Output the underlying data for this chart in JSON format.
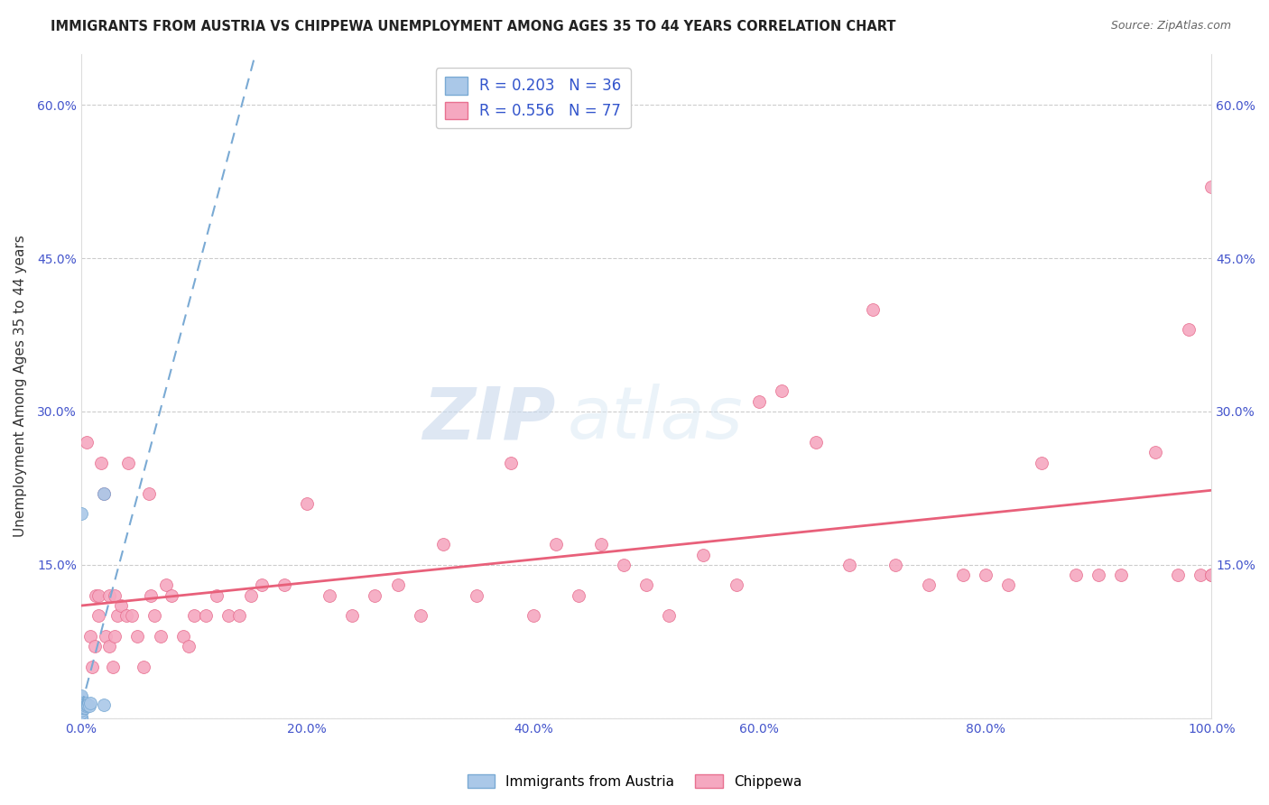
{
  "title": "IMMIGRANTS FROM AUSTRIA VS CHIPPEWA UNEMPLOYMENT AMONG AGES 35 TO 44 YEARS CORRELATION CHART",
  "source": "Source: ZipAtlas.com",
  "ylabel": "Unemployment Among Ages 35 to 44 years",
  "xlim": [
    0,
    1.0
  ],
  "ylim": [
    0,
    0.65
  ],
  "xticks": [
    0.0,
    0.2,
    0.4,
    0.6,
    0.8,
    1.0
  ],
  "xticklabels": [
    "0.0%",
    "20.0%",
    "40.0%",
    "60.0%",
    "80.0%",
    "100.0%"
  ],
  "ytick_positions": [
    0.0,
    0.15,
    0.3,
    0.45,
    0.6
  ],
  "ytick_labels": [
    "",
    "15.0%",
    "30.0%",
    "45.0%",
    "60.0%"
  ],
  "grid_color": "#cccccc",
  "background_color": "#ffffff",
  "austria_color": "#aac8e8",
  "austria_edge": "#7aaad4",
  "chippewa_color": "#f5a8c0",
  "chippewa_edge": "#e87090",
  "austria_trend_color": "#7aaad4",
  "chippewa_trend_color": "#e8607a",
  "R_austria": 0.203,
  "N_austria": 36,
  "R_chippewa": 0.556,
  "N_chippewa": 77,
  "legend_label_austria": "Immigrants from Austria",
  "legend_label_chippewa": "Chippewa",
  "watermark_zip": "ZIP",
  "watermark_atlas": "atlas",
  "austria_x": [
    0.0,
    0.0,
    0.0,
    0.0,
    0.0,
    0.0,
    0.0,
    0.0,
    0.0,
    0.0,
    0.0,
    0.0,
    0.0,
    0.0,
    0.0,
    0.0,
    0.0,
    0.0,
    0.001,
    0.001,
    0.001,
    0.001,
    0.001,
    0.002,
    0.002,
    0.002,
    0.003,
    0.003,
    0.004,
    0.004,
    0.005,
    0.006,
    0.007,
    0.008,
    0.02,
    0.02
  ],
  "austria_y": [
    0.0,
    0.0,
    0.0,
    0.0,
    0.0,
    0.0,
    0.005,
    0.008,
    0.01,
    0.01,
    0.012,
    0.012,
    0.013,
    0.015,
    0.015,
    0.02,
    0.022,
    0.2,
    0.01,
    0.01,
    0.012,
    0.013,
    0.015,
    0.01,
    0.012,
    0.013,
    0.01,
    0.013,
    0.012,
    0.015,
    0.013,
    0.013,
    0.012,
    0.015,
    0.013,
    0.22
  ],
  "chippewa_x": [
    0.005,
    0.008,
    0.01,
    0.012,
    0.013,
    0.015,
    0.015,
    0.018,
    0.02,
    0.022,
    0.025,
    0.025,
    0.028,
    0.03,
    0.03,
    0.032,
    0.035,
    0.04,
    0.042,
    0.045,
    0.05,
    0.055,
    0.06,
    0.062,
    0.065,
    0.07,
    0.075,
    0.08,
    0.09,
    0.095,
    0.1,
    0.11,
    0.12,
    0.13,
    0.14,
    0.15,
    0.16,
    0.18,
    0.2,
    0.22,
    0.24,
    0.26,
    0.28,
    0.3,
    0.32,
    0.35,
    0.38,
    0.4,
    0.42,
    0.44,
    0.46,
    0.48,
    0.5,
    0.52,
    0.55,
    0.58,
    0.6,
    0.62,
    0.65,
    0.68,
    0.7,
    0.72,
    0.75,
    0.78,
    0.8,
    0.82,
    0.85,
    0.88,
    0.9,
    0.92,
    0.95,
    0.97,
    0.98,
    0.99,
    1.0,
    1.0,
    1.0
  ],
  "chippewa_y": [
    0.27,
    0.08,
    0.05,
    0.07,
    0.12,
    0.12,
    0.1,
    0.25,
    0.22,
    0.08,
    0.07,
    0.12,
    0.05,
    0.08,
    0.12,
    0.1,
    0.11,
    0.1,
    0.25,
    0.1,
    0.08,
    0.05,
    0.22,
    0.12,
    0.1,
    0.08,
    0.13,
    0.12,
    0.08,
    0.07,
    0.1,
    0.1,
    0.12,
    0.1,
    0.1,
    0.12,
    0.13,
    0.13,
    0.21,
    0.12,
    0.1,
    0.12,
    0.13,
    0.1,
    0.17,
    0.12,
    0.25,
    0.1,
    0.17,
    0.12,
    0.17,
    0.15,
    0.13,
    0.1,
    0.16,
    0.13,
    0.31,
    0.32,
    0.27,
    0.15,
    0.4,
    0.15,
    0.13,
    0.14,
    0.14,
    0.13,
    0.25,
    0.14,
    0.14,
    0.14,
    0.26,
    0.14,
    0.38,
    0.14,
    0.14,
    0.52,
    0.14
  ]
}
